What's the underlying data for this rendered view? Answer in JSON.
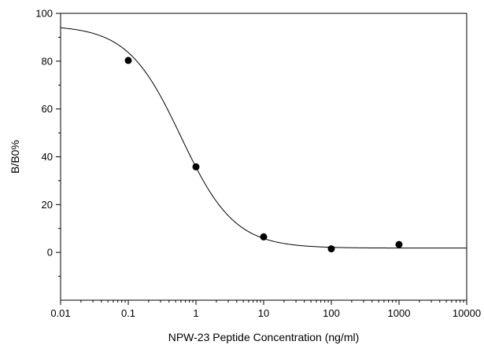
{
  "chart_data": {
    "type": "scatter",
    "title": "",
    "xlabel": "NPW-23 Peptide Concentration (ng/ml)",
    "ylabel": "B/B0%",
    "x_scale": "log",
    "xlim": [
      0.01,
      10000
    ],
    "ylim": [
      -20,
      100
    ],
    "x_ticks": [
      "0.01",
      "0.1",
      "1",
      "10",
      "100",
      "1000",
      "10000"
    ],
    "y_ticks": [
      "0",
      "20",
      "40",
      "60",
      "80",
      "100"
    ],
    "grid": false,
    "legend": "none",
    "series": [
      {
        "x": [
          0.1,
          1,
          10,
          100,
          1000
        ],
        "y": [
          80.3,
          35.8,
          6.5,
          1.5,
          3.3
        ],
        "marker": "filled-circle",
        "color": "#000000"
      }
    ],
    "fit_curve": {
      "model": "4PL",
      "top": 95.0,
      "bottom": 1.8,
      "ec50": 0.6,
      "hill": 1.1,
      "color": "#000000"
    }
  }
}
